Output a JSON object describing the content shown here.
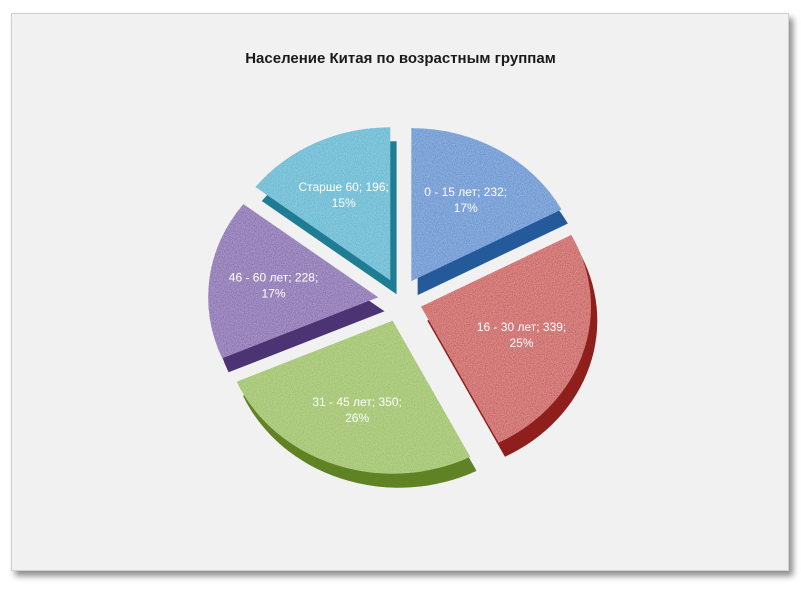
{
  "chart_data": {
    "type": "pie",
    "title": "Население Китая по возрастным группам",
    "slices": [
      {
        "label": "0 - 15 лет",
        "value": 232,
        "percent": "17%",
        "color": "#3d86cf",
        "side": "#24599a"
      },
      {
        "label": "16 - 30 лет",
        "value": 339,
        "percent": "25%",
        "color": "#c8332e",
        "side": "#8e1f1c"
      },
      {
        "label": "31 - 45 лет",
        "value": 350,
        "percent": "26%",
        "color": "#93bd3e",
        "side": "#5f8225"
      },
      {
        "label": "46 - 60 лет",
        "value": 228,
        "percent": "17%",
        "color": "#7851aa",
        "side": "#4c3373"
      },
      {
        "label": "Старше 60",
        "value": 196,
        "percent": "15%",
        "color": "#36b2cf",
        "side": "#1f7d93"
      }
    ]
  }
}
